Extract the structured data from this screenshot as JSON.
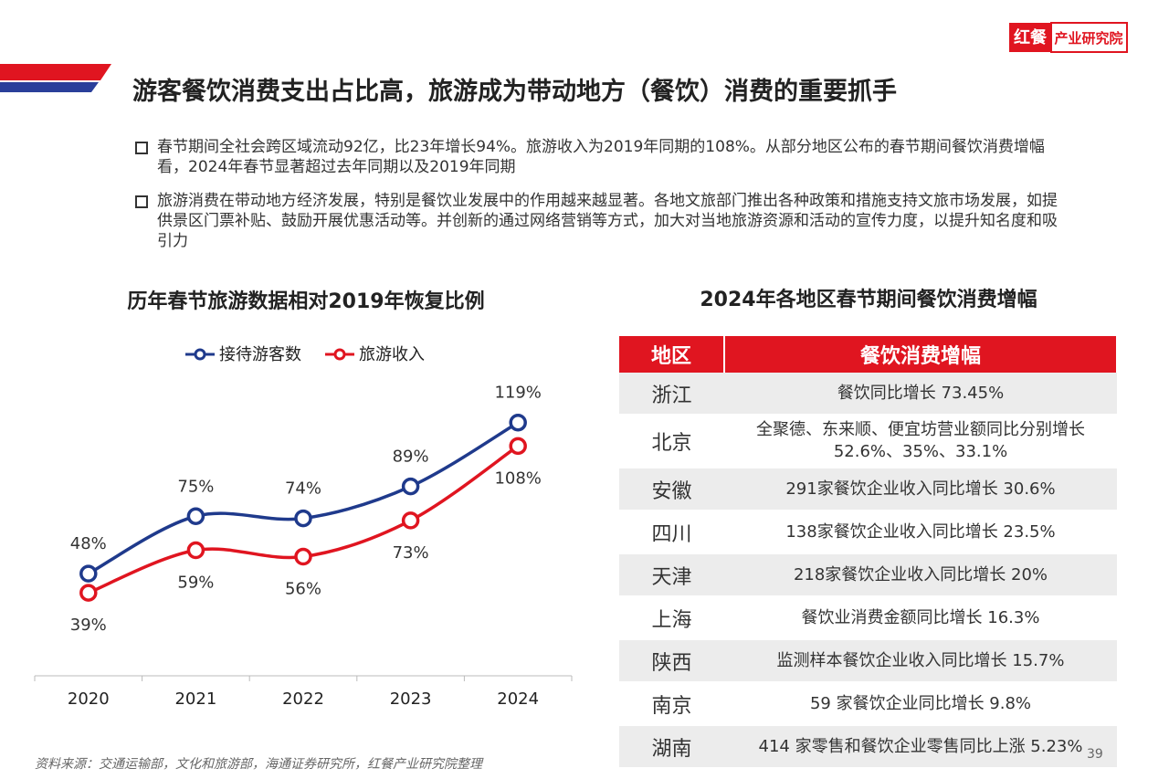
{
  "header": {
    "logo_mark": "红餐",
    "logo_text": "产业研究院",
    "title": "游客餐饮消费支出占比高，旅游成为带动地方（餐饮）消费的重要抓手"
  },
  "bullets": [
    "春节期间全社会跨区域流动92亿，比23年增长94%。旅游收入为2019年同期的108%。从部分地区公布的春节期间餐饮消费增幅看，2024年春节显著超过去年同期以及2019年同期",
    "旅游消费在带动地方经济发展，特别是餐饮业发展中的作用越来越显著。各地文旅部门推出各种政策和措施支持文旅市场发展，如提供景区门票补贴、鼓励开展优惠活动等。并创新的通过网络营销等方式，加大对当地旅游资源和活动的宣传力度，以提升知名度和吸引力"
  ],
  "chart_data": {
    "type": "line",
    "title": "历年春节旅游数据相对2019年恢复比例",
    "categories": [
      "2020",
      "2021",
      "2022",
      "2023",
      "2024"
    ],
    "series": [
      {
        "name": "接待游客数",
        "color": "#1f3a8c",
        "values": [
          48,
          75,
          74,
          89,
          119
        ],
        "value_labels": [
          "48%",
          "75%",
          "74%",
          "89%",
          "119%"
        ]
      },
      {
        "name": "旅游收入",
        "color": "#e01520",
        "values": [
          39,
          59,
          56,
          73,
          108
        ],
        "value_labels": [
          "39%",
          "59%",
          "56%",
          "73%",
          "108%"
        ]
      }
    ],
    "legend": "top"
  },
  "table": {
    "title": "2024年各地区春节期间餐饮消费增幅",
    "header": [
      "地区",
      "餐饮消费增幅"
    ],
    "rows": [
      [
        "浙江",
        "餐饮同比增长 73.45%"
      ],
      [
        "北京",
        "全聚德、东来顺、便宜坊营业额同比分别增长52.6%、35%、33.1%"
      ],
      [
        "安徽",
        "291家餐饮企业收入同比增长 30.6%"
      ],
      [
        "四川",
        "138家餐饮企业收入同比增长 23.5%"
      ],
      [
        "天津",
        "218家餐饮企业收入同比增长 20%"
      ],
      [
        "上海",
        "餐饮业消费金额同比增长 16.3%"
      ],
      [
        "陕西",
        "监测样本餐饮企业收入同比增长 15.7%"
      ],
      [
        "南京",
        "59 家餐饮企业同比增长 9.8%"
      ],
      [
        "湖南",
        "414 家零售和餐饮企业零售同比上涨 5.23%"
      ]
    ]
  },
  "footer": {
    "source": "资料来源：交通运输部，文化和旅游部，海通证券研究所，红餐产业研究院整理",
    "page": "39"
  }
}
